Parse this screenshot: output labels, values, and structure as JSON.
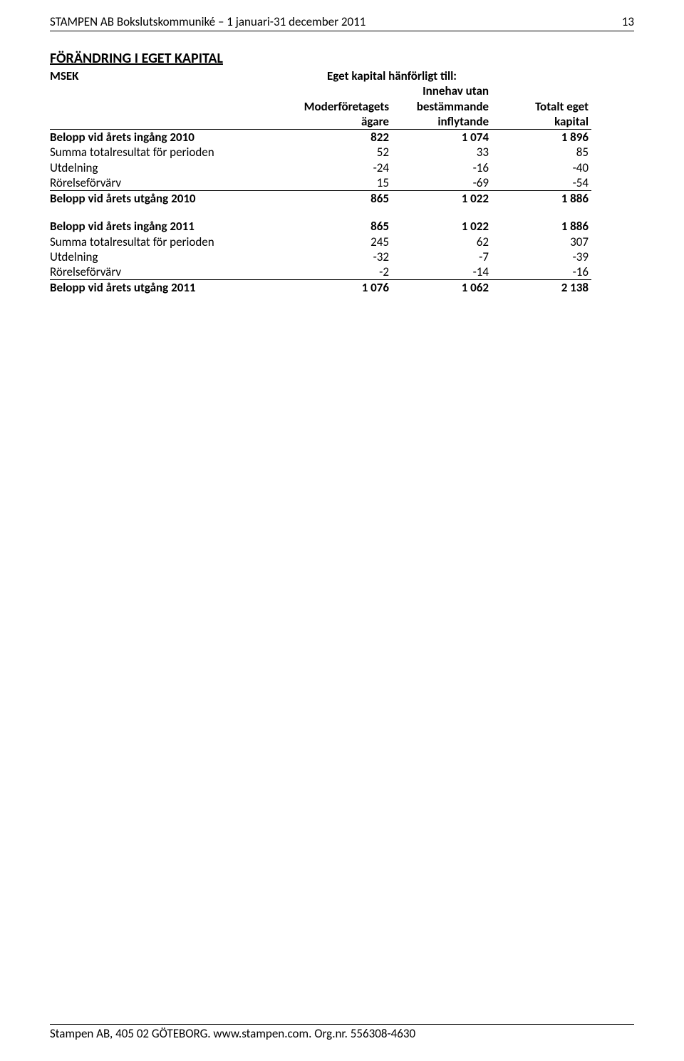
{
  "header": {
    "title": "STAMPEN AB Bokslutskommuniké – 1 januari-31 december 2011",
    "page_number": "13"
  },
  "section_title": "FÖRÄNDRING I EGET KAPITAL",
  "table": {
    "msek_label": "MSEK",
    "span_header": "Eget kapital hänförligt till:",
    "col_headers": {
      "c1_line1": "Moderföretagets",
      "c1_line2": "ägare",
      "c2_line1": "Innehav utan",
      "c2_line2": "bestämmande",
      "c2_line3": "inflytande",
      "c3_line1": "Totalt eget",
      "c3_line2": "kapital"
    },
    "rows_block1": [
      {
        "label": "Belopp vid årets ingång 2010",
        "c1": "822",
        "c2": "1 074",
        "c3": "1 896",
        "bold": true
      },
      {
        "label": "Summa totalresultat för perioden",
        "c1": "52",
        "c2": "33",
        "c3": "85",
        "bold": false
      },
      {
        "label": "Utdelning",
        "c1": "-24",
        "c2": "-16",
        "c3": "-40",
        "bold": false
      },
      {
        "label": "Rörelseförvärv",
        "c1": "15",
        "c2": "-69",
        "c3": "-54",
        "bold": false
      }
    ],
    "total1": {
      "label": "Belopp vid årets utgång 2010",
      "c1": "865",
      "c2": "1 022",
      "c3": "1 886"
    },
    "rows_block2": [
      {
        "label": "Belopp vid årets ingång 2011",
        "c1": "865",
        "c2": "1 022",
        "c3": "1 886",
        "bold": true
      },
      {
        "label": "Summa totalresultat för perioden",
        "c1": "245",
        "c2": "62",
        "c3": "307",
        "bold": false
      },
      {
        "label": "Utdelning",
        "c1": "-32",
        "c2": "-7",
        "c3": "-39",
        "bold": false
      },
      {
        "label": "Rörelseförvärv",
        "c1": "-2",
        "c2": "-14",
        "c3": "-16",
        "bold": false
      }
    ],
    "total2": {
      "label": "Belopp vid årets utgång 2011",
      "c1": "1 076",
      "c2": "1 062",
      "c3": "2 138"
    }
  },
  "footer": "Stampen AB, 405 02 GÖTEBORG. www.stampen.com. Org.nr. 556308-4630"
}
